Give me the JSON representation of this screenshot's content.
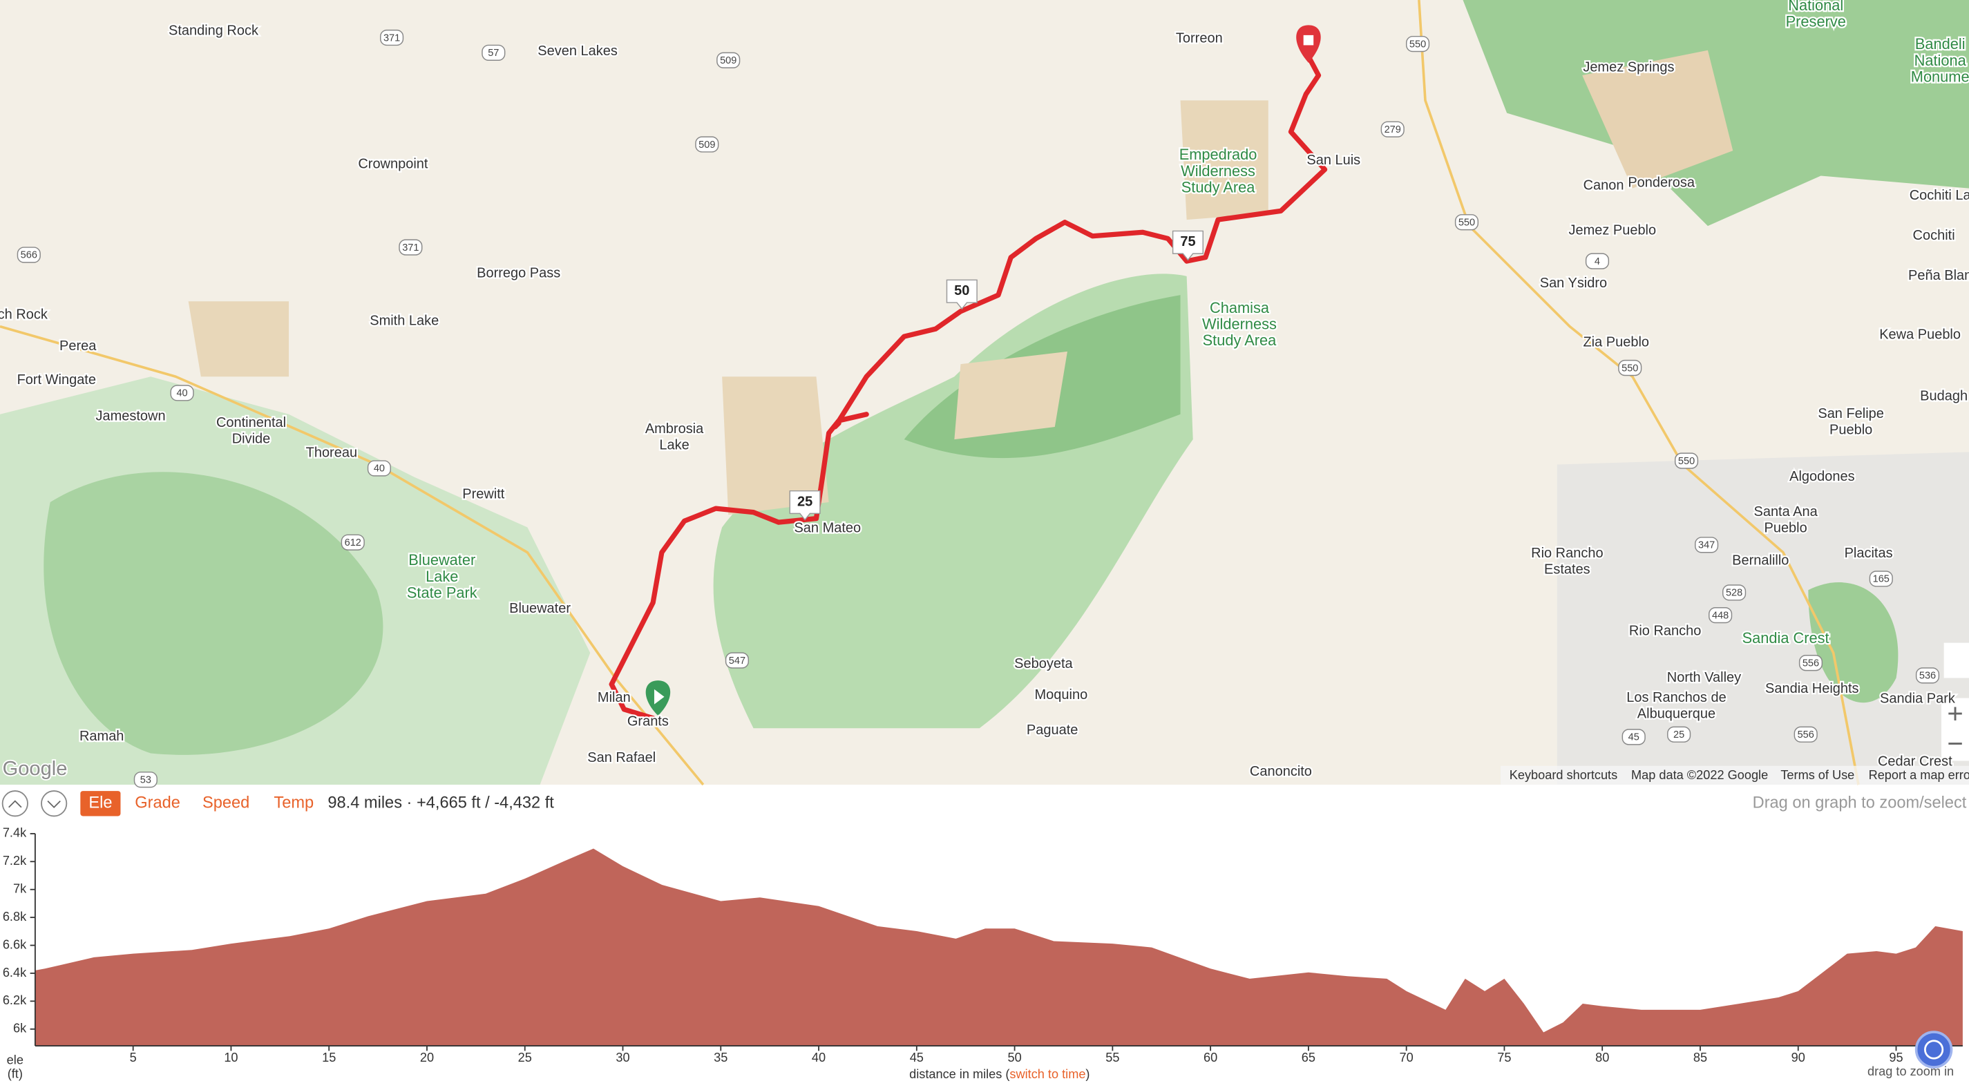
{
  "map": {
    "places": [
      [
        "Standing Rock"
      ],
      [
        "Seven Lakes"
      ],
      [
        "Torreon"
      ],
      [
        "San Luis"
      ],
      [
        "Jemez Springs"
      ],
      [
        "Canon"
      ],
      [
        "Ponderosa"
      ],
      [
        "Crownpoint"
      ],
      [
        "Empedrado",
        "Wilderness",
        "Study Area"
      ],
      [
        "Borrego Pass"
      ],
      [
        "Jemez Pueblo"
      ],
      [
        "Cochiti"
      ],
      [
        "Smith Lake"
      ],
      [
        "Chamisa",
        "Wilderness",
        "Study Area"
      ],
      [
        "San Ysidro"
      ],
      [
        "Perea"
      ],
      [
        "Zia Pueblo"
      ],
      [
        "Kewa Pueblo"
      ],
      [
        "Peña Blan"
      ],
      [
        "Fort Wingate"
      ],
      [
        "Jamestown"
      ],
      [
        "Continental",
        "Divide"
      ],
      [
        "Thoreau"
      ],
      [
        "Ambrosia",
        "Lake"
      ],
      [
        "Prewitt"
      ],
      [
        "San Felipe",
        "Pueblo"
      ],
      [
        "Algodones"
      ],
      [
        "Santa Ana",
        "Pueblo"
      ],
      [
        "San Mateo"
      ],
      [
        "Bernalillo"
      ],
      [
        "Placitas"
      ],
      [
        "Rio Rancho",
        "Estates"
      ],
      [
        "Bluewater",
        "Lake",
        "State Park"
      ],
      [
        "Bluewater"
      ],
      [
        "Rio Rancho"
      ],
      [
        "Sandia Crest"
      ],
      [
        "Seboyeta"
      ],
      [
        "North Valley"
      ],
      [
        "Sandia Heights"
      ],
      [
        "Sandia Park"
      ],
      [
        "Milan"
      ],
      [
        "Moquino"
      ],
      [
        "Los Ranchos de",
        "Albuquerque"
      ],
      [
        "Grants"
      ],
      [
        "Paguate"
      ],
      [
        "Ramah"
      ],
      [
        "San Rafael"
      ],
      [
        "Canoncito"
      ],
      [
        "Cedar Crest"
      ],
      [
        "National",
        "Preserve"
      ],
      [
        "Bandeli",
        "Nationa",
        "Monume"
      ],
      [
        "Cochiti La"
      ],
      [
        "Budagh"
      ],
      [
        "ch Rock"
      ]
    ],
    "road_shields": [
      "371",
      "57",
      "509",
      "509",
      "371",
      "566",
      "40",
      "40",
      "612",
      "547",
      "53",
      "550",
      "279",
      "550",
      "4",
      "550",
      "550",
      "347",
      "528",
      "448",
      "556",
      "556",
      "45",
      "25",
      "165",
      "536"
    ],
    "route_markers": [
      "25",
      "50",
      "75"
    ],
    "google_logo": "Google",
    "footer": [
      "Keyboard shortcuts",
      "Map data ©2022 Google",
      "Terms of Use",
      "Report a map erro"
    ],
    "zoom_in": "+",
    "zoom_out": "−"
  },
  "toolbar": {
    "tabs": [
      "Ele",
      "Grade",
      "Speed",
      "Temp"
    ],
    "summary": "98.4 miles · +4,665 ft / -4,432 ft",
    "hint": "Drag on graph to zoom/select"
  },
  "chart_data": {
    "type": "area",
    "y_label": [
      "ele",
      "(ft)"
    ],
    "x_label": "distance in miles (",
    "x_label_link": "switch to time",
    "x_label_end": ")",
    "zoom_hint": "drag to zoom in",
    "color": "#c0655a",
    "x": [
      0,
      0.5,
      3,
      5,
      8,
      10,
      13,
      15,
      17,
      20,
      23,
      25,
      27,
      28.5,
      30,
      32,
      35,
      37,
      40,
      43,
      45,
      47,
      48.5,
      50,
      52,
      55,
      57,
      60,
      62,
      65,
      67,
      69,
      70,
      72,
      73,
      74,
      75,
      76,
      77,
      78,
      79,
      80,
      82,
      84,
      85,
      87,
      89,
      90,
      91,
      92.5,
      94,
      95,
      96,
      97,
      98.4
    ],
    "values": [
      6420,
      6433,
      6514,
      6540,
      6567,
      6612,
      6666,
      6720,
      6809,
      6917,
      6970,
      7078,
      7203,
      7293,
      7167,
      7033,
      6917,
      6943,
      6881,
      6737,
      6702,
      6648,
      6720,
      6720,
      6630,
      6612,
      6585,
      6433,
      6361,
      6406,
      6379,
      6361,
      6272,
      6138,
      6361,
      6272,
      6361,
      6182,
      5977,
      6048,
      6182,
      6164,
      6138,
      6138,
      6138,
      6182,
      6227,
      6272,
      6379,
      6540,
      6558,
      6540,
      6585,
      6737,
      6702
    ],
    "xlim": [
      0,
      98.4
    ],
    "ylim": [
      5880,
      7400
    ],
    "xticks": [
      5,
      10,
      15,
      20,
      25,
      30,
      35,
      40,
      45,
      50,
      55,
      60,
      65,
      70,
      75,
      80,
      85,
      90,
      95
    ],
    "yticks": [
      {
        "value": 6000,
        "label": "6k"
      },
      {
        "value": 6200,
        "label": "6.2k"
      },
      {
        "value": 6400,
        "label": "6.4k"
      },
      {
        "value": 6600,
        "label": "6.6k"
      },
      {
        "value": 6800,
        "label": "6.8k"
      },
      {
        "value": 7000,
        "label": "7k"
      },
      {
        "value": 7200,
        "label": "7.2k"
      },
      {
        "value": 7400,
        "label": "7.4k"
      }
    ]
  }
}
